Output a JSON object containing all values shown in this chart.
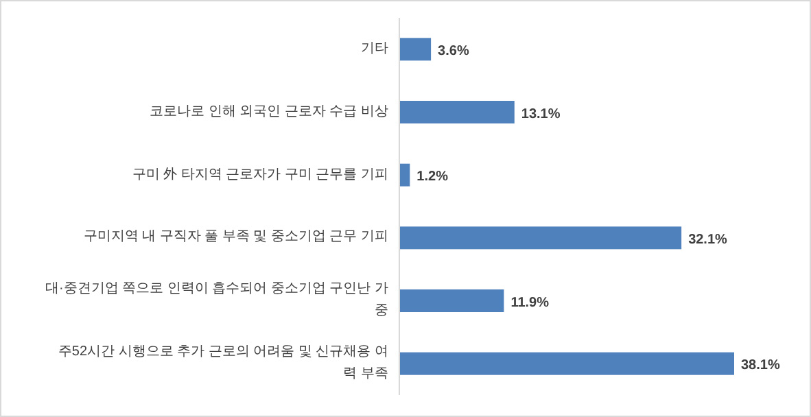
{
  "chart_data": {
    "type": "bar",
    "orientation": "horizontal",
    "categories": [
      "기타",
      "코로나로 인해 외국인 근로자 수급 비상",
      "구미 外 타지역 근로자가 구미 근무를 기피",
      "구미지역 내 구직자 풀 부족 및 중소기업 근무 기피",
      "대·중견기업 쪽으로 인력이 흡수되어 중소기업 구인난 가중",
      "주52시간 시행으로 추가 근로의 어려움 및 신규채용 여력 부족"
    ],
    "values": [
      3.6,
      13.1,
      1.2,
      32.1,
      11.9,
      38.1
    ],
    "value_labels": [
      "3.6%",
      "13.1%",
      "1.2%",
      "32.1%",
      "11.9%",
      "38.1%"
    ],
    "color": "#4f81bd"
  }
}
